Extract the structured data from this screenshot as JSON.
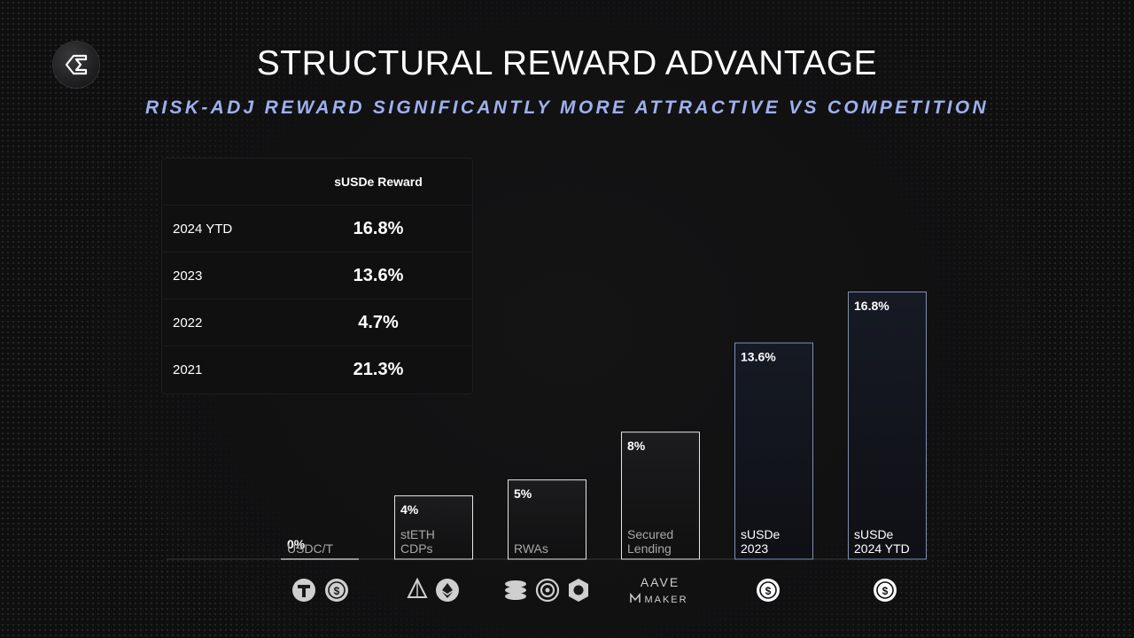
{
  "title": "STRUCTURAL REWARD ADVANTAGE",
  "subtitle": "RISK-ADJ REWARD SIGNIFICANTLY MORE ATTRACTIVE VS COMPETITION",
  "table": {
    "header": "sUSDe Reward",
    "rows": [
      {
        "year": "2024 YTD",
        "value": "16.8%"
      },
      {
        "year": "2023",
        "value": "13.6%"
      },
      {
        "year": "2022",
        "value": "4.7%"
      },
      {
        "year": "2021",
        "value": "21.3%"
      }
    ]
  },
  "logos": {
    "aave_text": "AAVE",
    "maker_text": "MAKER"
  },
  "colors": {
    "accent": "#9fb0f0",
    "bar_border": "#e6e6e6",
    "highlight_border": "#7d8fc0"
  },
  "chart_data": {
    "type": "bar",
    "categories": [
      "USDC/T",
      "stETH CDPs",
      "RWAs",
      "Secured Lending",
      "sUSDe 2023",
      "sUSDe 2024 YTD"
    ],
    "category_lines": [
      [
        "USDC/T"
      ],
      [
        "stETH",
        "CDPs"
      ],
      [
        "RWAs"
      ],
      [
        "Secured",
        "Lending"
      ],
      [
        "sUSDe",
        "2023"
      ],
      [
        "sUSDe",
        "2024 YTD"
      ]
    ],
    "values": [
      0,
      4,
      5,
      8,
      13.6,
      16.8
    ],
    "value_labels": [
      "0%",
      "4%",
      "5%",
      "8%",
      "13.6%",
      "16.8%"
    ],
    "highlighted": [
      false,
      false,
      false,
      false,
      true,
      true
    ],
    "ylim": [
      0,
      16.8
    ],
    "grid": false,
    "legend": "none",
    "icons": [
      [
        "tether-icon",
        "usdc-icon"
      ],
      [
        "lido-icon",
        "ethena-steth-icon"
      ],
      [
        "stack-coins-icon",
        "ondo-icon",
        "centrifuge-icon"
      ],
      [
        "aave-maker-logo"
      ],
      [
        "susde-icon"
      ],
      [
        "susde-icon"
      ]
    ]
  }
}
